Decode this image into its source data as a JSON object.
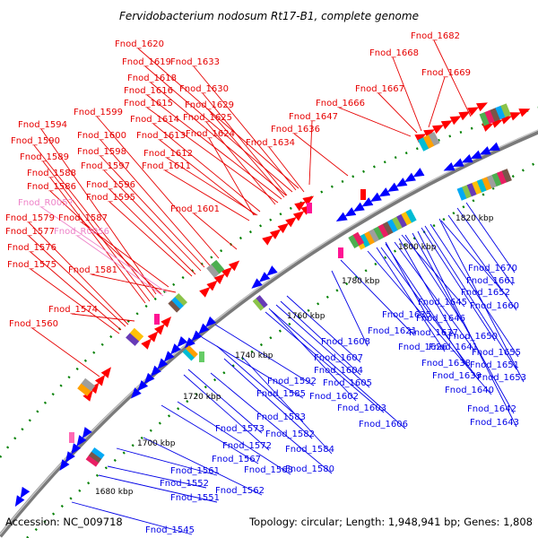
{
  "title": "Fervidobacterium nodosum Rt17-B1, complete genome",
  "footer": {
    "accession": "Accession: NC_009718",
    "summary": "Topology: circular; Length: 1,948,941 bp; Genes: 1,808"
  },
  "colors": {
    "forward_label": "#e60000",
    "reverse_label": "#0000e6",
    "rna_label": "#ee82c8",
    "forward_arrow": "#ff0000",
    "reverse_arrow": "#0000ff",
    "backbone": "#888888",
    "tick_dots": "#008000"
  },
  "scale_labels": [
    "1680 kbp",
    "1700 kbp",
    "1720 kbp",
    "1740 kbp",
    "1760 kbp",
    "1780 kbp",
    "1800 kbp",
    "1820 kbp"
  ],
  "forward_genes": [
    "Fnod_1620",
    "Fnod_1619",
    "Fnod_1633",
    "Fnod_1618",
    "Fnod_1630",
    "Fnod_1616",
    "Fnod_1629",
    "Fnod_1615",
    "Fnod_1625",
    "Fnod_1614",
    "Fnod_1613",
    "Fnod_1624",
    "Fnod_1634",
    "Fnod_1612",
    "Fnod_1611",
    "Fnod_1599",
    "Fnod_1594",
    "Fnod_1600",
    "Fnod_1590",
    "Fnod_1598",
    "Fnod_1589",
    "Fnod_1597",
    "Fnod_1588",
    "Fnod_1596",
    "Fnod_1586",
    "Fnod_1595",
    "Fnod_1601",
    "Fnod_1579",
    "Fnod_1587",
    "Fnod_1577",
    "Fnod_1576",
    "Fnod_1575",
    "Fnod_1581",
    "Fnod_1574",
    "Fnod_1560",
    "Fnod_1682",
    "Fnod_1668",
    "Fnod_1669",
    "Fnod_1667",
    "Fnod_1666",
    "Fnod_1647",
    "Fnod_1636"
  ],
  "rna_genes": [
    "Fnod_R0057",
    "Fnod_R0056"
  ],
  "reverse_genes": [
    "Fnod_1670",
    "Fnod_1661",
    "Fnod_1652",
    "Fnod_1645",
    "Fnod_1660",
    "Fnod_1635",
    "Fnod_1646",
    "Fnod_1621",
    "Fnod_1637",
    "Fnod_1650",
    "Fnod_1608",
    "Fnod_1626",
    "Fnod_1641",
    "Fnod_1655",
    "Fnod_1607",
    "Fnod_1638",
    "Fnod_1651",
    "Fnod_1604",
    "Fnod_1639",
    "Fnod_1653",
    "Fnod_1592",
    "Fnod_1605",
    "Fnod_1640",
    "Fnod_1585",
    "Fnod_1602",
    "Fnod_1642",
    "Fnod_1603",
    "Fnod_1643",
    "Fnod_1583",
    "Fnod_1606",
    "Fnod_1573",
    "Fnod_1582",
    "Fnod_1572",
    "Fnod_1584",
    "Fnod_1567",
    "Fnod_1561",
    "Fnod_1568",
    "Fnod_1580",
    "Fnod_1552",
    "Fnod_1562",
    "Fnod_1551",
    "Fnod_1545"
  ]
}
